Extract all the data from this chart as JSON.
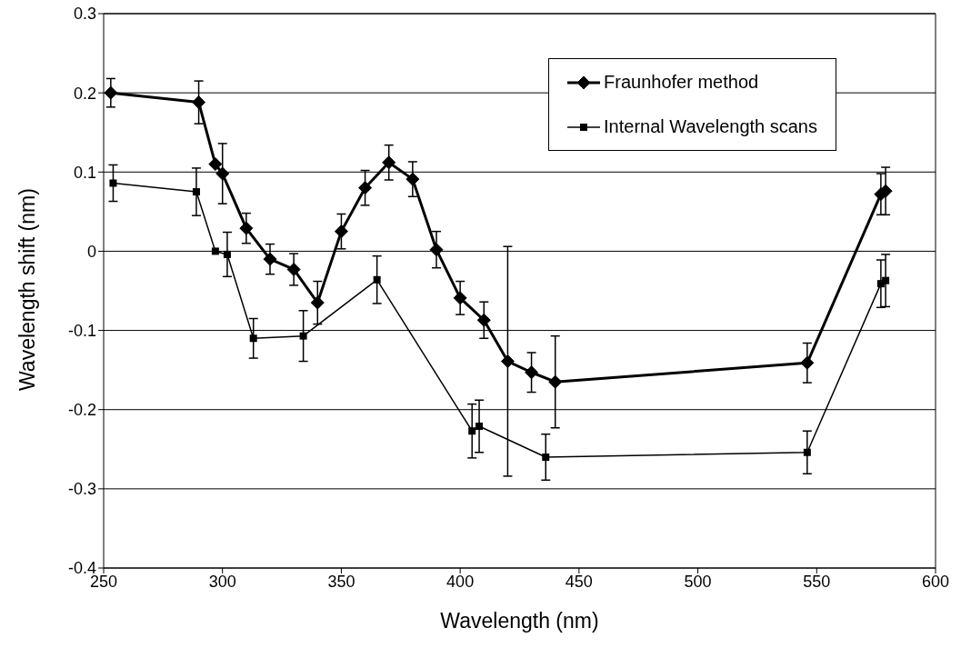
{
  "chart_data": {
    "type": "line",
    "xlabel": "Wavelength (nm)",
    "ylabel": "Wavelength shift (nm)",
    "xlim": [
      250,
      600
    ],
    "xticks": [
      250,
      300,
      350,
      400,
      450,
      500,
      550,
      600
    ],
    "ylim": [
      -0.4,
      0.3
    ],
    "yticks": [
      -0.4,
      -0.3,
      -0.2,
      -0.1,
      0,
      0.1,
      0.2,
      0.3
    ],
    "grid": "y",
    "legend": "top right",
    "series": [
      {
        "name": "Fraunhofer method",
        "color": "#000000",
        "marker": "diamond",
        "x": [
          253,
          290,
          297,
          300,
          310,
          320,
          330,
          340,
          350,
          360,
          370,
          380,
          390,
          400,
          410,
          420,
          430,
          440,
          546,
          577,
          579
        ],
        "values": [
          0.2,
          0.188,
          0.11,
          0.098,
          0.029,
          -0.01,
          -0.023,
          -0.065,
          0.025,
          0.08,
          0.112,
          0.091,
          0.002,
          -0.059,
          -0.087,
          -0.139,
          -0.153,
          -0.165,
          -0.141,
          0.072,
          0.076
        ],
        "errors": [
          0.018,
          0.027,
          null,
          0.038,
          0.019,
          0.019,
          0.02,
          0.027,
          0.022,
          0.022,
          0.022,
          0.022,
          0.023,
          0.021,
          0.023,
          0.145,
          0.025,
          0.058,
          0.025,
          0.026,
          0.03
        ]
      },
      {
        "name": "Internal Wavelength scans",
        "color": "#000000",
        "marker": "square",
        "x": [
          254,
          289,
          297,
          302,
          313,
          334,
          365,
          405,
          408,
          436,
          546,
          577,
          579
        ],
        "values": [
          0.086,
          0.075,
          0.0,
          -0.004,
          -0.11,
          -0.107,
          -0.036,
          -0.227,
          -0.221,
          -0.26,
          -0.254,
          -0.041,
          -0.037
        ],
        "errors": [
          0.023,
          0.03,
          null,
          0.028,
          0.025,
          0.032,
          0.03,
          0.034,
          0.033,
          0.029,
          0.027,
          0.03,
          0.033
        ]
      }
    ]
  }
}
